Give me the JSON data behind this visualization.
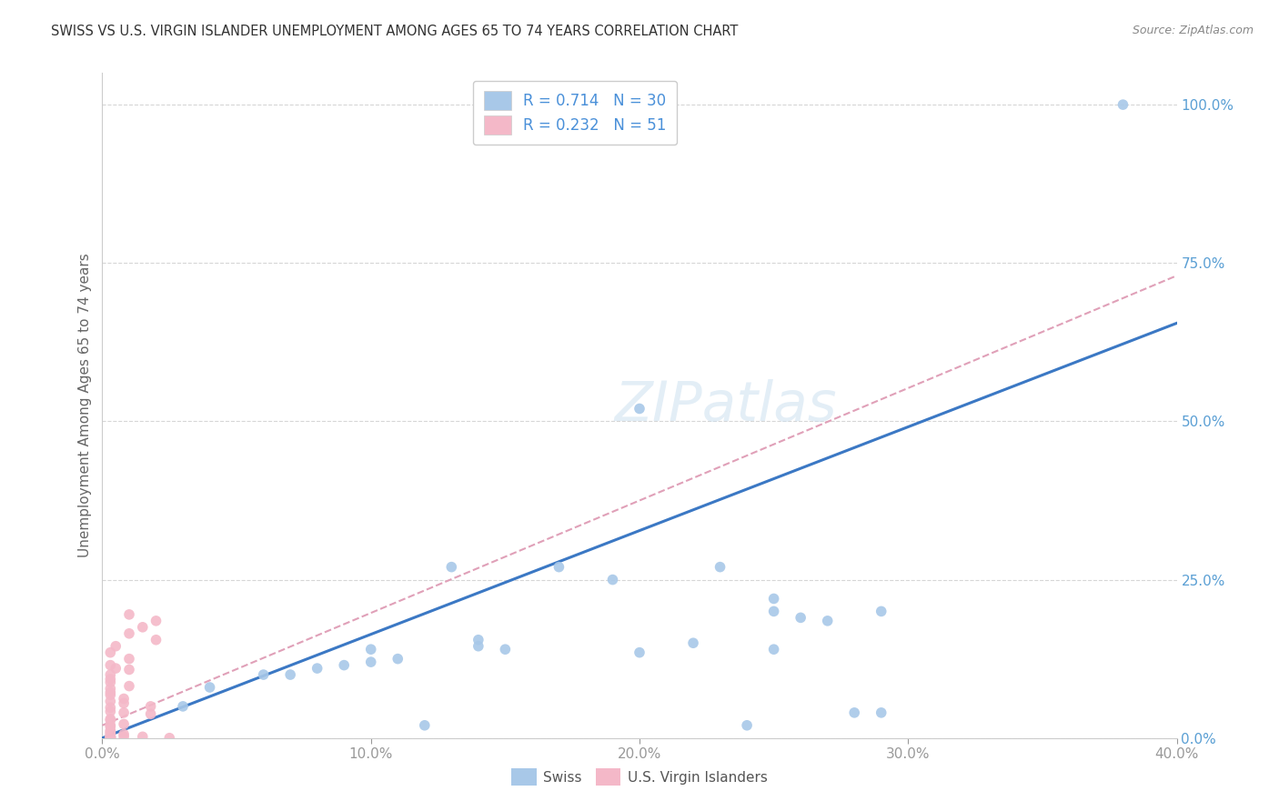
{
  "title": "SWISS VS U.S. VIRGIN ISLANDER UNEMPLOYMENT AMONG AGES 65 TO 74 YEARS CORRELATION CHART",
  "source": "Source: ZipAtlas.com",
  "ylabel": "Unemployment Among Ages 65 to 74 years",
  "xlim": [
    0.0,
    0.4
  ],
  "ylim": [
    0.0,
    1.05
  ],
  "xticks": [
    0.0,
    0.1,
    0.2,
    0.3,
    0.4
  ],
  "xtick_labels": [
    "0.0%",
    "10.0%",
    "20.0%",
    "30.0%",
    "40.0%"
  ],
  "ytick_labels": [
    "0.0%",
    "25.0%",
    "50.0%",
    "75.0%",
    "100.0%"
  ],
  "yticks": [
    0.0,
    0.25,
    0.5,
    0.75,
    1.0
  ],
  "swiss_R": "0.714",
  "swiss_N": "30",
  "vi_R": "0.232",
  "vi_N": "51",
  "swiss_color": "#a8c8e8",
  "vi_color": "#f4b8c8",
  "trendline_swiss_color": "#3b78c4",
  "trendline_vi_color": "#e0a0b8",
  "swiss_trendline": [
    [
      0.0,
      0.0
    ],
    [
      0.4,
      0.655
    ]
  ],
  "vi_trendline": [
    [
      0.0,
      0.02
    ],
    [
      0.4,
      0.73
    ]
  ],
  "swiss_scatter": [
    [
      0.38,
      1.0
    ],
    [
      0.2,
      0.52
    ],
    [
      0.23,
      0.27
    ],
    [
      0.17,
      0.27
    ],
    [
      0.13,
      0.27
    ],
    [
      0.19,
      0.25
    ],
    [
      0.25,
      0.22
    ],
    [
      0.26,
      0.19
    ],
    [
      0.27,
      0.185
    ],
    [
      0.29,
      0.2
    ],
    [
      0.22,
      0.15
    ],
    [
      0.25,
      0.14
    ],
    [
      0.2,
      0.135
    ],
    [
      0.14,
      0.155
    ],
    [
      0.14,
      0.145
    ],
    [
      0.15,
      0.14
    ],
    [
      0.1,
      0.14
    ],
    [
      0.11,
      0.125
    ],
    [
      0.1,
      0.12
    ],
    [
      0.09,
      0.115
    ],
    [
      0.08,
      0.11
    ],
    [
      0.07,
      0.1
    ],
    [
      0.06,
      0.1
    ],
    [
      0.04,
      0.08
    ],
    [
      0.03,
      0.05
    ],
    [
      0.25,
      0.2
    ],
    [
      0.29,
      0.04
    ],
    [
      0.28,
      0.04
    ],
    [
      0.12,
      0.02
    ],
    [
      0.24,
      0.02
    ]
  ],
  "vi_scatter": [
    [
      0.01,
      0.195
    ],
    [
      0.02,
      0.185
    ],
    [
      0.015,
      0.175
    ],
    [
      0.01,
      0.165
    ],
    [
      0.02,
      0.155
    ],
    [
      0.005,
      0.145
    ],
    [
      0.003,
      0.135
    ],
    [
      0.01,
      0.125
    ],
    [
      0.003,
      0.115
    ],
    [
      0.005,
      0.11
    ],
    [
      0.01,
      0.108
    ],
    [
      0.003,
      0.1
    ],
    [
      0.003,
      0.093
    ],
    [
      0.003,
      0.088
    ],
    [
      0.01,
      0.082
    ],
    [
      0.003,
      0.078
    ],
    [
      0.003,
      0.072
    ],
    [
      0.003,
      0.068
    ],
    [
      0.008,
      0.062
    ],
    [
      0.003,
      0.058
    ],
    [
      0.008,
      0.055
    ],
    [
      0.018,
      0.05
    ],
    [
      0.003,
      0.048
    ],
    [
      0.003,
      0.042
    ],
    [
      0.008,
      0.04
    ],
    [
      0.018,
      0.038
    ],
    [
      0.003,
      0.03
    ],
    [
      0.003,
      0.028
    ],
    [
      0.008,
      0.022
    ],
    [
      0.003,
      0.02
    ],
    [
      0.003,
      0.018
    ],
    [
      0.003,
      0.012
    ],
    [
      0.003,
      0.01
    ],
    [
      0.003,
      0.008
    ],
    [
      0.003,
      0.006
    ],
    [
      0.008,
      0.006
    ],
    [
      0.003,
      0.003
    ],
    [
      0.003,
      0.003
    ],
    [
      0.008,
      0.002
    ],
    [
      0.015,
      0.002
    ],
    [
      0.003,
      0.002
    ],
    [
      0.003,
      0.001
    ],
    [
      0.003,
      0.001
    ],
    [
      0.003,
      0.001
    ],
    [
      0.003,
      0.0
    ],
    [
      0.003,
      0.0
    ],
    [
      0.003,
      0.0
    ],
    [
      0.003,
      0.0
    ],
    [
      0.003,
      0.0
    ],
    [
      0.003,
      0.0
    ],
    [
      0.025,
      0.0
    ]
  ]
}
